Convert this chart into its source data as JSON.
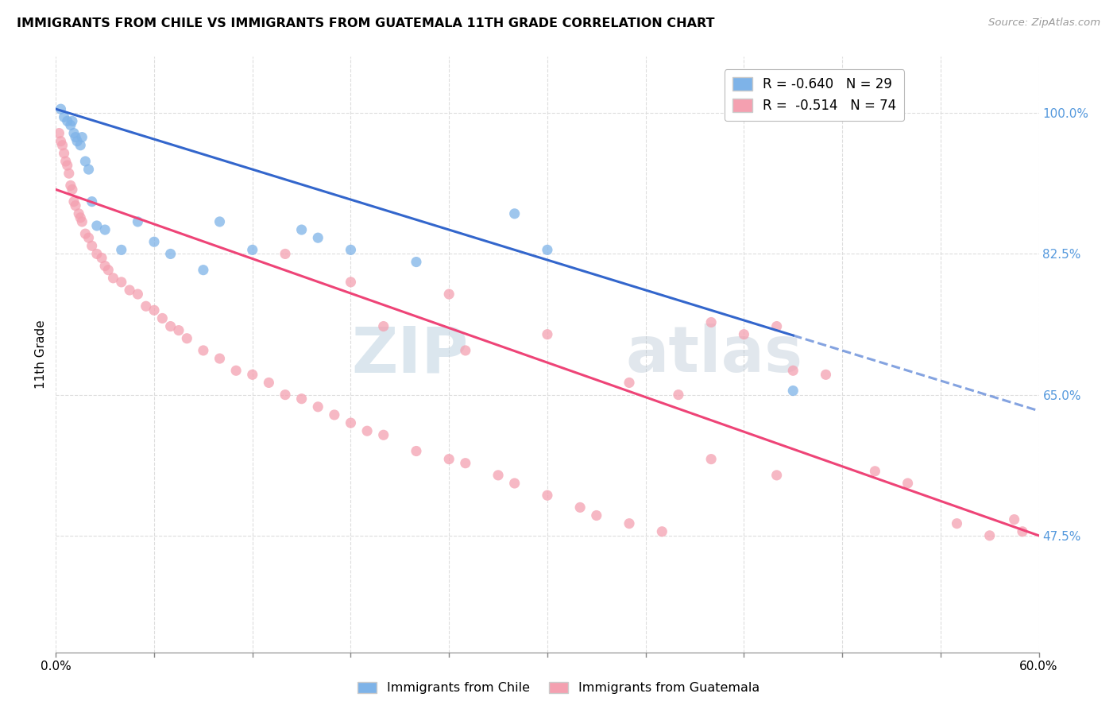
{
  "title": "IMMIGRANTS FROM CHILE VS IMMIGRANTS FROM GUATEMALA 11TH GRADE CORRELATION CHART",
  "source": "Source: ZipAtlas.com",
  "ylabel": "11th Grade",
  "y_ticks": [
    47.5,
    65.0,
    82.5,
    100.0
  ],
  "x_min": 0.0,
  "x_max": 60.0,
  "y_min": 33.0,
  "y_max": 107.0,
  "legend_r_chile": "R = -0.640",
  "legend_n_chile": "N = 29",
  "legend_r_guatemala": "R =  -0.514",
  "legend_n_guatemala": "N = 74",
  "chile_color": "#7EB3E8",
  "guatemala_color": "#F4A0B0",
  "regression_chile_color": "#3366CC",
  "regression_guatemala_color": "#EE4477",
  "watermark_zip": "ZIP",
  "watermark_atlas": "atlas",
  "chile_line_x0": 0.0,
  "chile_line_y0": 100.5,
  "chile_line_x1": 60.0,
  "chile_line_y1": 63.0,
  "chile_line_solid_end": 45.0,
  "guat_line_x0": 0.0,
  "guat_line_y0": 90.5,
  "guat_line_x1": 60.0,
  "guat_line_y1": 47.5,
  "chile_points_x": [
    0.3,
    0.5,
    0.7,
    0.9,
    1.0,
    1.1,
    1.2,
    1.3,
    1.5,
    1.6,
    1.8,
    2.0,
    2.2,
    2.5,
    3.0,
    4.0,
    5.0,
    6.0,
    7.0,
    9.0,
    10.0,
    12.0,
    15.0,
    16.0,
    18.0,
    22.0,
    28.0,
    30.0,
    45.0
  ],
  "chile_points_y": [
    100.5,
    99.5,
    99.0,
    98.5,
    99.0,
    97.5,
    97.0,
    96.5,
    96.0,
    97.0,
    94.0,
    93.0,
    89.0,
    86.0,
    85.5,
    83.0,
    86.5,
    84.0,
    82.5,
    80.5,
    86.5,
    83.0,
    85.5,
    84.5,
    83.0,
    81.5,
    87.5,
    83.0,
    65.5
  ],
  "guatemala_points_x": [
    0.2,
    0.3,
    0.4,
    0.5,
    0.6,
    0.7,
    0.8,
    0.9,
    1.0,
    1.1,
    1.2,
    1.4,
    1.5,
    1.6,
    1.8,
    2.0,
    2.2,
    2.5,
    2.8,
    3.0,
    3.2,
    3.5,
    4.0,
    4.5,
    5.0,
    5.5,
    6.0,
    6.5,
    7.0,
    7.5,
    8.0,
    9.0,
    10.0,
    11.0,
    12.0,
    13.0,
    14.0,
    15.0,
    16.0,
    17.0,
    18.0,
    19.0,
    20.0,
    22.0,
    24.0,
    25.0,
    27.0,
    28.0,
    30.0,
    32.0,
    33.0,
    35.0,
    37.0,
    38.0,
    40.0,
    42.0,
    44.0,
    45.0,
    47.0,
    50.0,
    52.0,
    55.0,
    57.0,
    58.5,
    59.0,
    14.0,
    18.0,
    24.0,
    30.0,
    35.0,
    20.0,
    25.0,
    40.0,
    44.0
  ],
  "guatemala_points_y": [
    97.5,
    96.5,
    96.0,
    95.0,
    94.0,
    93.5,
    92.5,
    91.0,
    90.5,
    89.0,
    88.5,
    87.5,
    87.0,
    86.5,
    85.0,
    84.5,
    83.5,
    82.5,
    82.0,
    81.0,
    80.5,
    79.5,
    79.0,
    78.0,
    77.5,
    76.0,
    75.5,
    74.5,
    73.5,
    73.0,
    72.0,
    70.5,
    69.5,
    68.0,
    67.5,
    66.5,
    65.0,
    64.5,
    63.5,
    62.5,
    61.5,
    60.5,
    60.0,
    58.0,
    57.0,
    56.5,
    55.0,
    54.0,
    52.5,
    51.0,
    50.0,
    49.0,
    48.0,
    65.0,
    74.0,
    72.5,
    73.5,
    68.0,
    67.5,
    55.5,
    54.0,
    49.0,
    47.5,
    49.5,
    48.0,
    82.5,
    79.0,
    77.5,
    72.5,
    66.5,
    73.5,
    70.5,
    57.0,
    55.0
  ]
}
